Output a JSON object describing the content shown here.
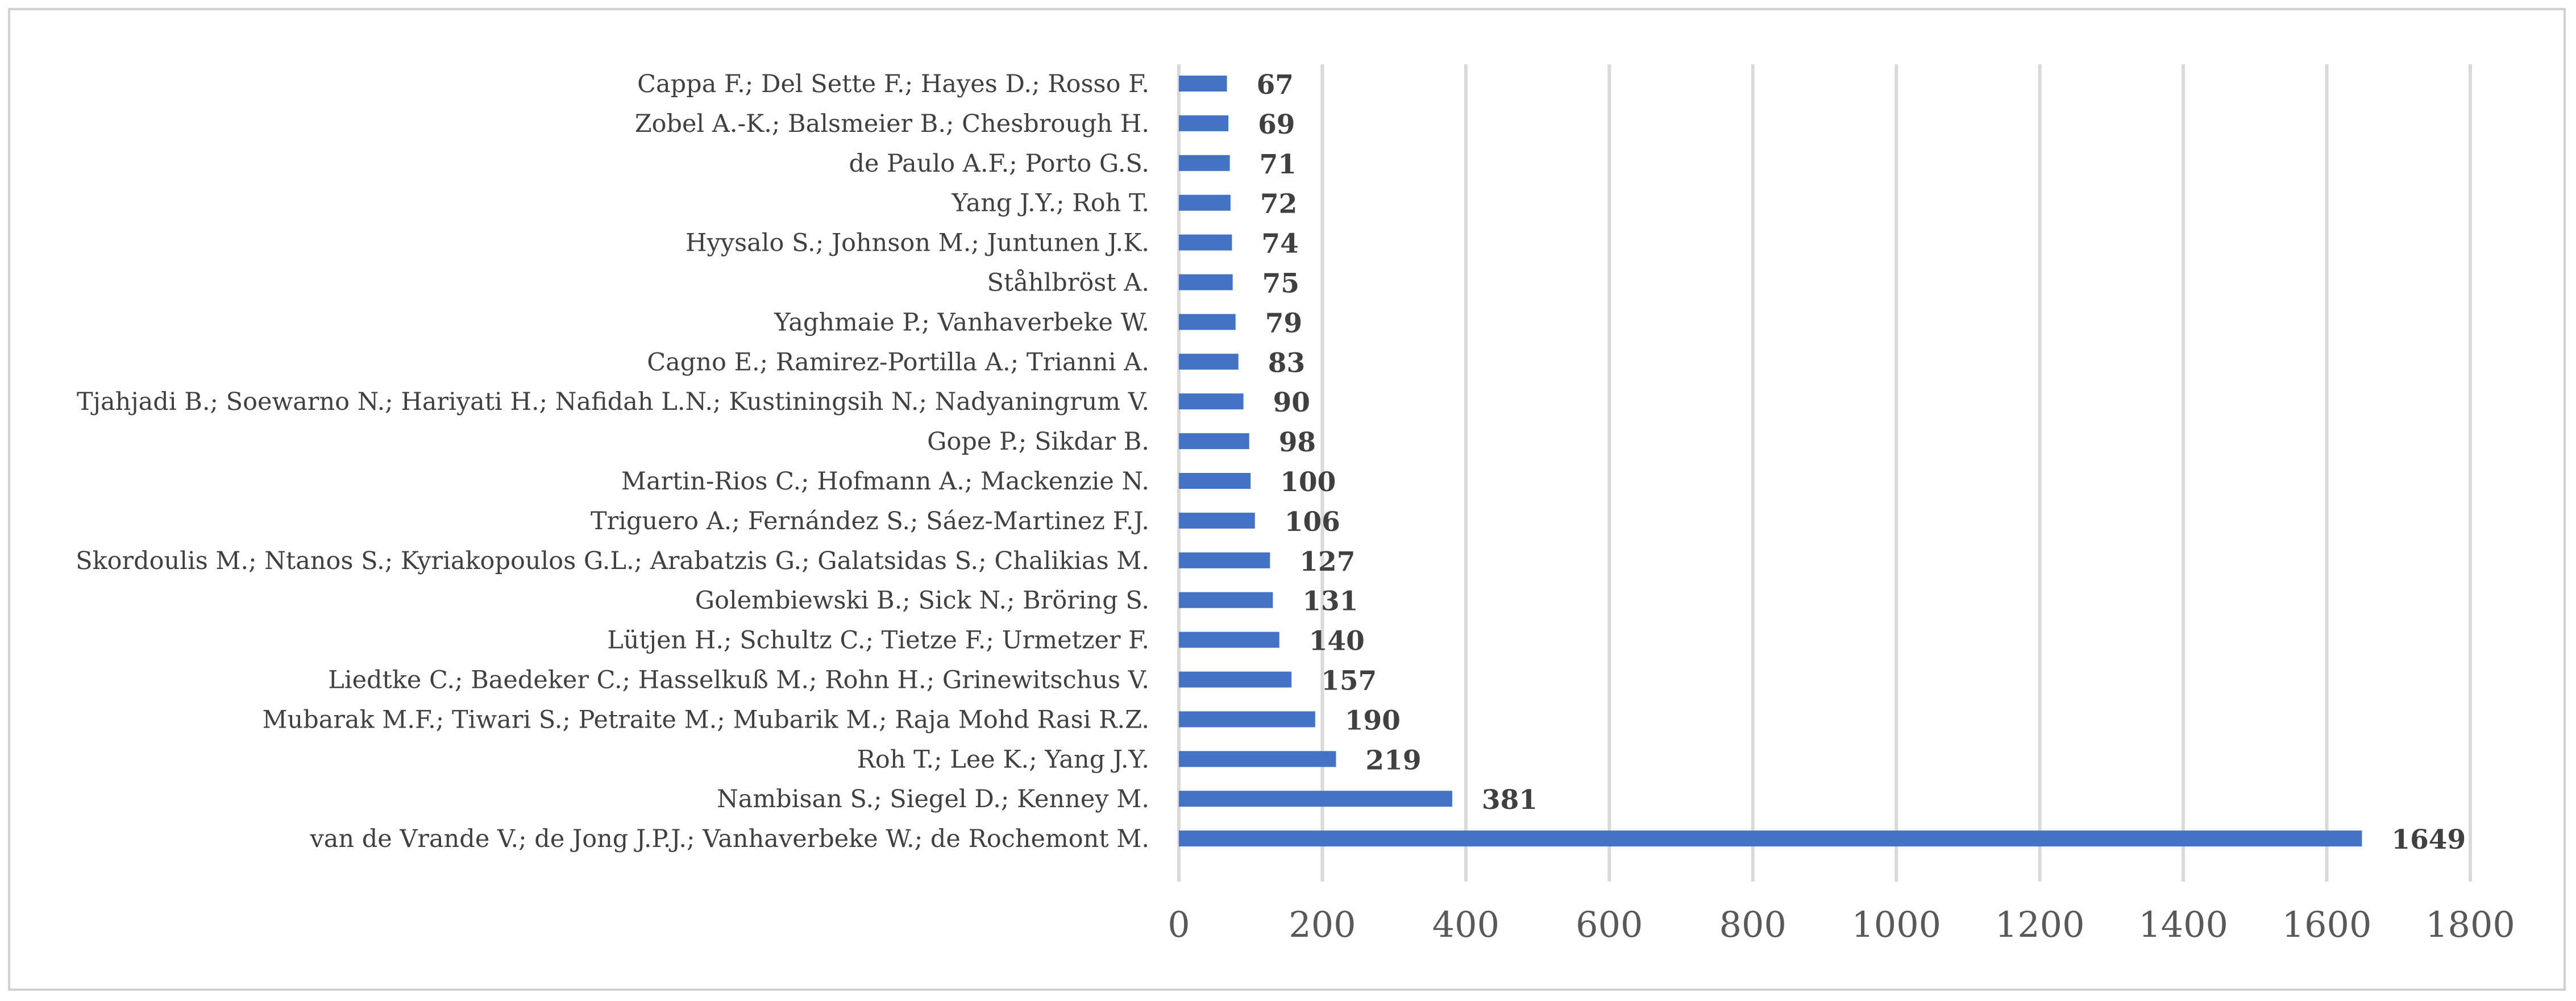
{
  "chart_data": {
    "type": "bar",
    "orientation": "horizontal",
    "categories": [
      "Cappa F.; Del Sette F.; Hayes D.; Rosso F.",
      "Zobel A.-K.; Balsmeier B.; Chesbrough H.",
      "de Paulo A.F.; Porto G.S.",
      "Yang J.Y.; Roh T.",
      "Hyysalo S.; Johnson M.; Juntunen J.K.",
      "Ståhlbröst A.",
      "Yaghmaie P.; Vanhaverbeke W.",
      "Cagno E.; Ramirez-Portilla A.; Trianni A.",
      "Tjahjadi B.; Soewarno N.; Hariyati H.; Nafidah L.N.; Kustiningsih N.; Nadyaningrum V.",
      "Gope P.; Sikdar B.",
      "Martin-Rios C.; Hofmann A.; Mackenzie N.",
      "Triguero A.; Fernández S.; Sáez-Martinez F.J.",
      "Skordoulis M.; Ntanos S.; Kyriakopoulos G.L.; Arabatzis G.; Galatsidas S.; Chalikias M.",
      "Golembiewski B.; Sick N.; Bröring S.",
      "Lütjen H.; Schultz C.; Tietze F.; Urmetzer F.",
      "Liedtke C.; Baedeker C.; Hasselkuß M.; Rohn H.; Grinewitschus V.",
      "Mubarak M.F.; Tiwari S.; Petraite M.; Mubarik M.; Raja Mohd Rasi R.Z.",
      "Roh T.; Lee K.; Yang J.Y.",
      "Nambisan S.; Siegel D.; Kenney M.",
      "van de Vrande V.; de Jong J.P.J.; Vanhaverbeke W.; de Rochemont M."
    ],
    "values": [
      67,
      69,
      71,
      72,
      74,
      75,
      79,
      83,
      90,
      98,
      100,
      106,
      127,
      131,
      140,
      157,
      190,
      219,
      381,
      1649
    ],
    "value_labels": [
      "67",
      "69",
      "71",
      "72",
      "74",
      "75",
      "79",
      "83",
      "90",
      "98",
      "100",
      "106",
      "127",
      "131",
      "140",
      "157",
      "190",
      "219",
      "381",
      "1649"
    ],
    "x_ticks": [
      "0",
      "200",
      "400",
      "600",
      "800",
      "1000",
      "1200",
      "1400",
      "1600",
      "1800"
    ],
    "xlim": [
      0,
      1800
    ],
    "title": "",
    "xlabel": "",
    "ylabel": "",
    "grid": true,
    "legend": "none",
    "colors": {
      "bar": "#4472c4",
      "grid": "#d9d9d9",
      "text": "#404040",
      "tick_text": "#595959",
      "frame": "#d0d0d0"
    }
  }
}
